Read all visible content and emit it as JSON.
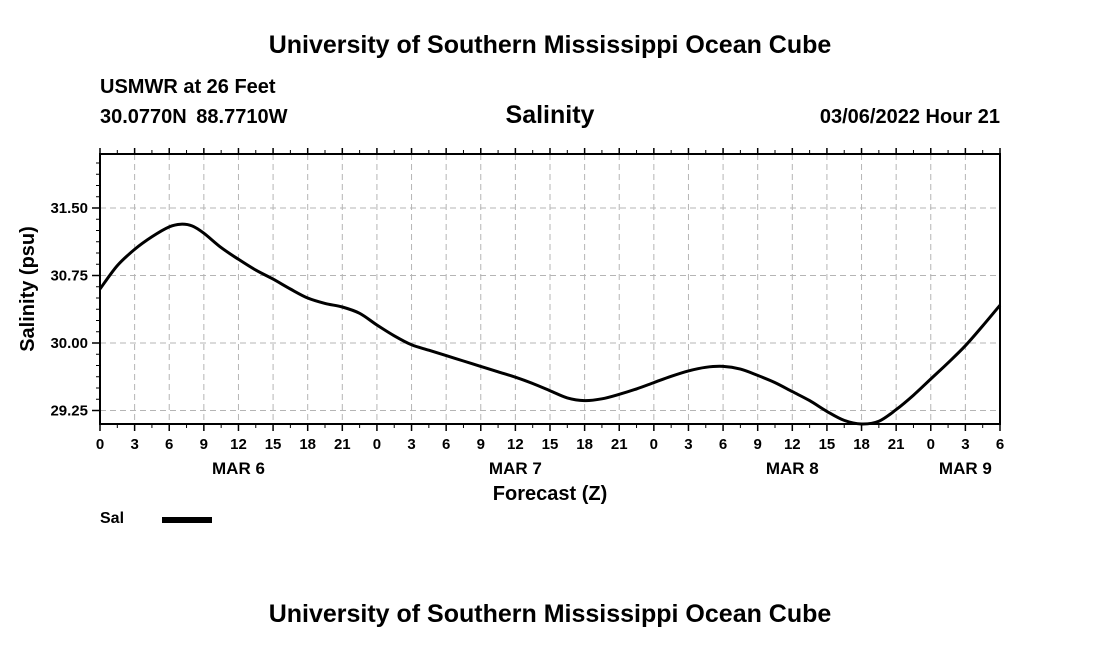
{
  "header": {
    "title": "University of Southern Mississippi Ocean Cube",
    "station": "USMWR at 26 Feet",
    "coordinates": "30.0770N  88.7710W",
    "datetime": "03/06/2022 Hour 21"
  },
  "footer": {
    "title": "University of Southern Mississippi Ocean Cube"
  },
  "legend": {
    "label": "Sal",
    "color": "#000000"
  },
  "chart_data": {
    "type": "line",
    "title": "Salinity",
    "xlabel": "Forecast (Z)",
    "ylabel": "Salinity (psu)",
    "x_unit": "hours since MAR 6 00Z",
    "xlim": [
      0,
      78
    ],
    "ylim": [
      29.1,
      32.1
    ],
    "grid": true,
    "x_ticks": [
      0,
      3,
      6,
      9,
      12,
      15,
      18,
      21,
      24,
      27,
      30,
      33,
      36,
      39,
      42,
      45,
      48,
      51,
      54,
      57,
      60,
      63,
      66,
      69,
      72,
      75,
      78
    ],
    "x_tick_labels": [
      "0",
      "3",
      "6",
      "9",
      "12",
      "15",
      "18",
      "21",
      "0",
      "3",
      "6",
      "9",
      "12",
      "15",
      "18",
      "21",
      "0",
      "3",
      "6",
      "9",
      "12",
      "15",
      "18",
      "21",
      "0",
      "3",
      "6"
    ],
    "minor_x_ticks": [
      1.5,
      4.5,
      7.5,
      10.5,
      13.5,
      16.5,
      19.5,
      22.5,
      25.5,
      28.5,
      31.5,
      34.5,
      37.5,
      40.5,
      43.5,
      46.5,
      49.5,
      52.5,
      55.5,
      58.5,
      61.5,
      64.5,
      67.5,
      70.5,
      73.5,
      76.5
    ],
    "y_ticks": [
      29.25,
      30.0,
      30.75,
      31.5
    ],
    "y_tick_labels": [
      "29.25",
      "30.00",
      "30.75",
      "31.50"
    ],
    "y_minor_ticks": [
      29.375,
      29.5,
      29.625,
      29.75,
      29.875,
      30.125,
      30.25,
      30.375,
      30.5,
      30.625,
      30.875,
      31.0,
      31.125,
      31.25,
      31.375,
      31.625,
      31.75,
      31.875,
      32.0
    ],
    "date_labels": [
      {
        "label": "MAR 6",
        "x": 12
      },
      {
        "label": "MAR 7",
        "x": 36
      },
      {
        "label": "MAR 8",
        "x": 60
      },
      {
        "label": "MAR 9",
        "x": 75
      }
    ],
    "series": [
      {
        "name": "Sal",
        "x": [
          0,
          1.5,
          3,
          4.5,
          6,
          7,
          8,
          9,
          10.5,
          12,
          13.5,
          15,
          16.5,
          18,
          19.5,
          21,
          22.5,
          24,
          25.5,
          27,
          28.5,
          30,
          31.5,
          33,
          34.5,
          36,
          37.5,
          39,
          40.5,
          42,
          43.5,
          45,
          46.5,
          48,
          49.5,
          51,
          52.5,
          54,
          55.5,
          57,
          58.5,
          60,
          61.5,
          63,
          64.5,
          66,
          67.5,
          69,
          70.5,
          72,
          73.5,
          75,
          76.5,
          78
        ],
        "y": [
          30.6,
          30.86,
          31.04,
          31.18,
          31.29,
          31.32,
          31.3,
          31.22,
          31.06,
          30.93,
          30.81,
          30.71,
          30.6,
          30.5,
          30.44,
          30.4,
          30.33,
          30.2,
          30.08,
          29.98,
          29.92,
          29.86,
          29.8,
          29.74,
          29.68,
          29.62,
          29.55,
          29.47,
          29.39,
          29.36,
          29.38,
          29.43,
          29.49,
          29.56,
          29.63,
          29.69,
          29.73,
          29.74,
          29.71,
          29.64,
          29.56,
          29.46,
          29.36,
          29.24,
          29.14,
          29.1,
          29.13,
          29.26,
          29.42,
          29.6,
          29.78,
          29.97,
          30.19,
          30.42
        ]
      }
    ]
  }
}
